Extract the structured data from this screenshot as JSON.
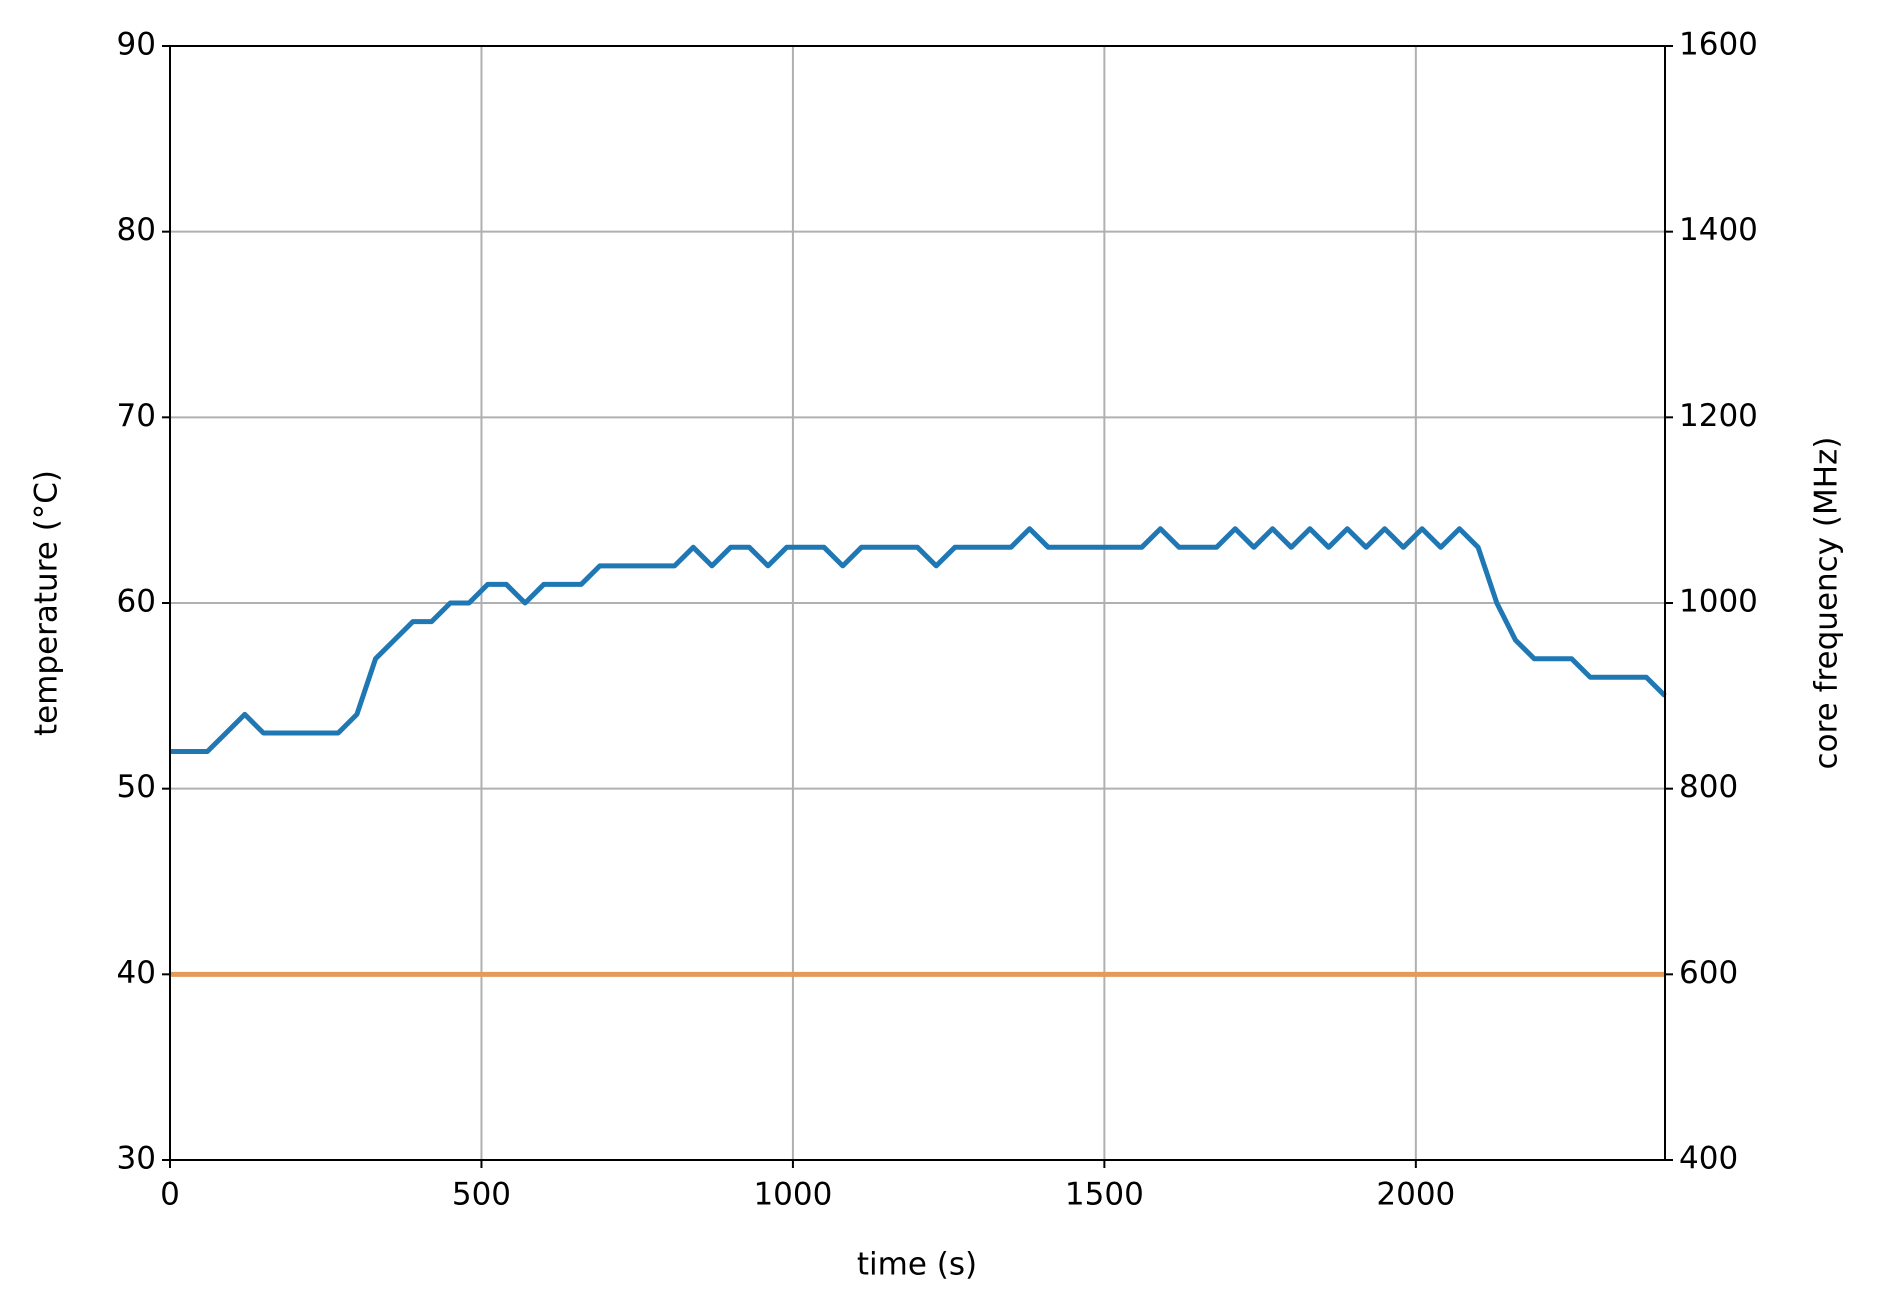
{
  "chart_data": {
    "type": "line",
    "xlabel": "time (s)",
    "ylabel": "temperature (°C)",
    "y2label": "core frequency (MHz)",
    "x": [
      0,
      30,
      60,
      90,
      120,
      150,
      180,
      210,
      240,
      270,
      300,
      330,
      360,
      390,
      420,
      450,
      480,
      510,
      540,
      570,
      600,
      630,
      660,
      690,
      720,
      750,
      780,
      810,
      840,
      870,
      900,
      930,
      960,
      990,
      1020,
      1050,
      1080,
      1110,
      1140,
      1170,
      1200,
      1230,
      1260,
      1290,
      1320,
      1350,
      1380,
      1410,
      1440,
      1470,
      1500,
      1530,
      1560,
      1590,
      1620,
      1650,
      1680,
      1710,
      1740,
      1770,
      1800,
      1830,
      1860,
      1890,
      1920,
      1950,
      1980,
      2010,
      2040,
      2070,
      2100,
      2130,
      2160,
      2190,
      2220,
      2250,
      2280,
      2310,
      2340,
      2370,
      2400
    ],
    "series": [
      {
        "color": "#1f77b4",
        "values": [
          52,
          52,
          52,
          53,
          54,
          53,
          53,
          53,
          53,
          53,
          54,
          57,
          58,
          59,
          59,
          60,
          60,
          61,
          61,
          60,
          61,
          61,
          61,
          62,
          62,
          62,
          62,
          62,
          63,
          62,
          63,
          63,
          62,
          63,
          63,
          63,
          62,
          63,
          63,
          63,
          63,
          62,
          63,
          63,
          63,
          63,
          64,
          63,
          63,
          63,
          63,
          63,
          63,
          64,
          63,
          63,
          63,
          64,
          63,
          64,
          63,
          64,
          63,
          64,
          63,
          64,
          63,
          64,
          63,
          64,
          63,
          60,
          58,
          57,
          57,
          57,
          56,
          56,
          56,
          56,
          55
        ]
      },
      {
        "color": "#e39a5a",
        "axis": "y2",
        "values": [
          600,
          600,
          600,
          600,
          600,
          600,
          600,
          600,
          600,
          600,
          600,
          600,
          600,
          600,
          600,
          600,
          600,
          600,
          600,
          600,
          600,
          600,
          600,
          600,
          600,
          600,
          600,
          600,
          600,
          600,
          600,
          600,
          600,
          600,
          600,
          600,
          600,
          600,
          600,
          600,
          600,
          600,
          600,
          600,
          600,
          600,
          600,
          600,
          600,
          600,
          600,
          600,
          600,
          600,
          600,
          600,
          600,
          600,
          600,
          600,
          600,
          600,
          600,
          600,
          600,
          600,
          600,
          600,
          600,
          600,
          600,
          600,
          600,
          600,
          600,
          600,
          600,
          600,
          600,
          600,
          600
        ]
      }
    ],
    "xlim": [
      0,
      2400
    ],
    "xticks": [
      0,
      500,
      1000,
      1500,
      2000
    ],
    "ylim": [
      30,
      90
    ],
    "yticks": [
      30,
      40,
      50,
      60,
      70,
      80,
      90
    ],
    "y2lim": [
      400,
      1600
    ],
    "y2ticks": [
      400,
      600,
      800,
      1000,
      1200,
      1400,
      1600
    ],
    "grid": true
  }
}
